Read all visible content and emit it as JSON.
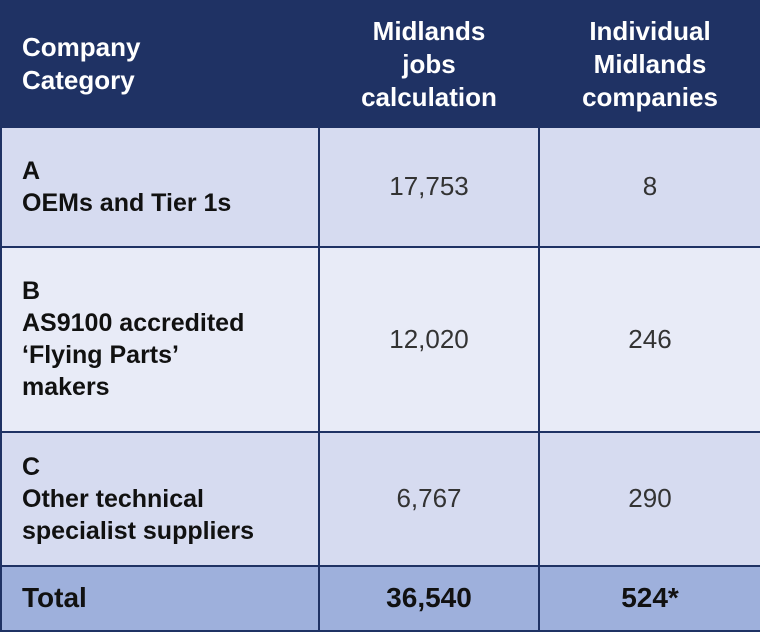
{
  "table": {
    "header": [
      "Company Category",
      "Midlands jobs calculation",
      "Individual Midlands companies"
    ],
    "rows": [
      {
        "letter": "A",
        "name": [
          "OEMs and Tier 1s"
        ],
        "jobs": "17,753",
        "companies": "8"
      },
      {
        "letter": "B",
        "name": [
          "AS9100 accredited",
          "‘Flying Parts’",
          "makers"
        ],
        "jobs": "12,020",
        "companies": "246"
      },
      {
        "letter": "C",
        "name": [
          "Other technical",
          "specialist suppliers"
        ],
        "jobs": "6,767",
        "companies": "290"
      }
    ],
    "total": [
      "Total",
      "36,540",
      "524*"
    ]
  }
}
